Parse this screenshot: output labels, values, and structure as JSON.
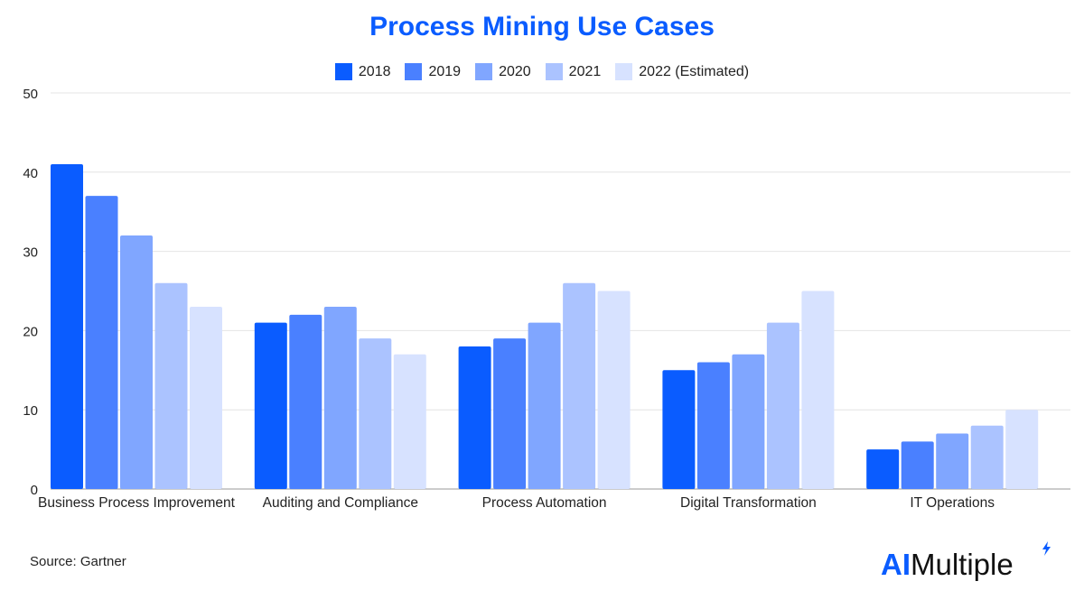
{
  "chart_data": {
    "type": "bar",
    "title": "Process Mining Use Cases",
    "categories": [
      "Business Process Improvement",
      "Auditing and Compliance",
      "Process Automation",
      "Digital Transformation",
      "IT Operations"
    ],
    "series": [
      {
        "name": "2018",
        "color": "#0a5cff",
        "values": [
          41,
          21,
          18,
          15,
          5
        ]
      },
      {
        "name": "2019",
        "color": "#4a80ff",
        "values": [
          37,
          22,
          19,
          16,
          6
        ]
      },
      {
        "name": "2020",
        "color": "#80a6ff",
        "values": [
          32,
          23,
          21,
          17,
          7
        ]
      },
      {
        "name": "2021",
        "color": "#abc3ff",
        "values": [
          26,
          19,
          26,
          21,
          8
        ]
      },
      {
        "name": "2022 (Estimated)",
        "color": "#d7e2ff",
        "values": [
          23,
          17,
          25,
          25,
          10
        ]
      }
    ],
    "ylim": [
      0,
      50
    ],
    "yticks": [
      0,
      10,
      20,
      30,
      40,
      50
    ],
    "grid": true,
    "legend_position": "top-center"
  },
  "colors": {
    "title": "#0a5cff",
    "logo_ai": "#0a5cff",
    "logo_text": "#111111"
  },
  "source_text": "Source: Gartner",
  "logo": {
    "ai": "AI",
    "rest": "Multiple"
  }
}
